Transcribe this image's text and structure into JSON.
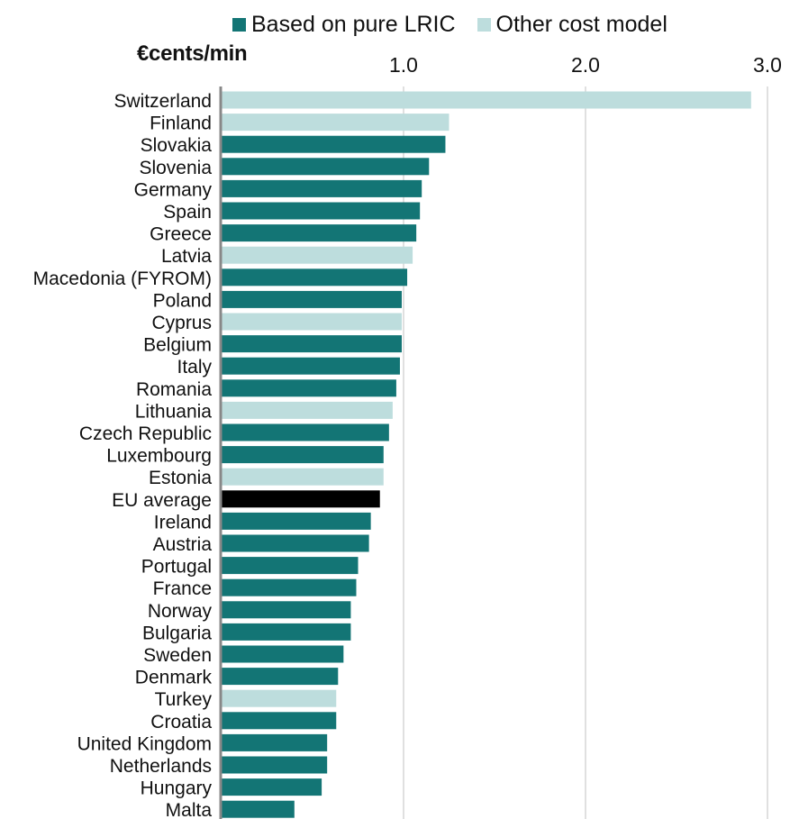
{
  "legend": {
    "items": [
      {
        "label": "Based on pure LRIC",
        "color": "#137575"
      },
      {
        "label": "Other cost model",
        "color": "#bddddd"
      }
    ]
  },
  "unit_label": "€cents/min",
  "colors": {
    "highlight": "#000000",
    "gridline": "#d6d6d6",
    "axis_line": "#888888"
  },
  "chart_data": {
    "type": "bar",
    "orientation": "horizontal",
    "title": "",
    "xlabel": "€cents/min",
    "xlim": [
      0,
      3.0
    ],
    "xticks": [
      {
        "value": 1.0,
        "label": "1.0"
      },
      {
        "value": 2.0,
        "label": "2.0"
      },
      {
        "value": 3.0,
        "label": "3.0"
      }
    ],
    "x_axis_position": "top",
    "grid": true,
    "legend_position": "top",
    "categories": [
      "Switzerland",
      "Finland",
      "Slovakia",
      "Slovenia",
      "Germany",
      "Spain",
      "Greece",
      "Latvia",
      "Macedonia (FYROM)",
      "Poland",
      "Cyprus",
      "Belgium",
      "Italy",
      "Romania",
      "Lithuania",
      "Czech Republic",
      "Luxembourg",
      "Estonia",
      "EU average",
      "Ireland",
      "Austria",
      "Portugal",
      "France",
      "Norway",
      "Bulgaria",
      "Sweden",
      "Denmark",
      "Turkey",
      "Croatia",
      "United Kingdom",
      "Netherlands",
      "Hungary",
      "Malta"
    ],
    "values": [
      2.91,
      1.25,
      1.23,
      1.14,
      1.1,
      1.09,
      1.07,
      1.05,
      1.02,
      0.99,
      0.99,
      0.99,
      0.98,
      0.96,
      0.94,
      0.92,
      0.89,
      0.89,
      0.87,
      0.82,
      0.81,
      0.75,
      0.74,
      0.71,
      0.71,
      0.67,
      0.64,
      0.63,
      0.63,
      0.58,
      0.58,
      0.55,
      0.4
    ],
    "groups": [
      "other",
      "other",
      "lric",
      "lric",
      "lric",
      "lric",
      "lric",
      "other",
      "lric",
      "lric",
      "other",
      "lric",
      "lric",
      "lric",
      "other",
      "lric",
      "lric",
      "other",
      "average",
      "lric",
      "lric",
      "lric",
      "lric",
      "lric",
      "lric",
      "lric",
      "lric",
      "other",
      "lric",
      "lric",
      "lric",
      "lric",
      "lric"
    ]
  }
}
